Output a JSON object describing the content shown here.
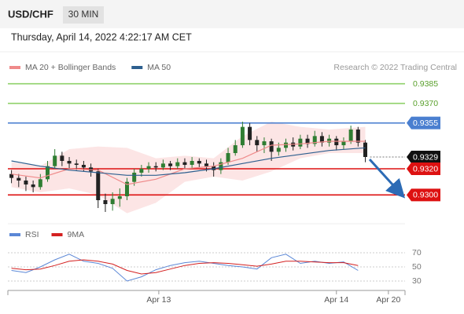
{
  "header": {
    "symbol": "USD/CHF",
    "timeframe": "30 MIN",
    "datetime": "Thursday, April 14, 2022 4:22:17 AM CET"
  },
  "chart_data": [
    {
      "type": "candlestick",
      "credit": "Research © 2022 Trading Central",
      "up_color": "#2f7d32",
      "down_color": "#222222",
      "xlim": [
        -0.5,
        54.5
      ],
      "ylim": [
        0.9278,
        0.9392
      ],
      "open": [
        0.9316,
        0.9313,
        0.9311,
        0.9308,
        0.9306,
        0.9312,
        0.9322,
        0.933,
        0.9326,
        0.9324,
        0.9323,
        0.9321,
        0.9318,
        0.9296,
        0.9293,
        0.9297,
        0.9299,
        0.931,
        0.9317,
        0.932,
        0.9322,
        0.9321,
        0.9324,
        0.9322,
        0.9325,
        0.9323,
        0.9326,
        0.9324,
        0.9322,
        0.9319,
        0.9325,
        0.9332,
        0.9338,
        0.9352,
        0.9342,
        0.9338,
        0.9341,
        0.9333,
        0.9336,
        0.934,
        0.9337,
        0.9343,
        0.9339,
        0.9345,
        0.934,
        0.9343,
        0.9338,
        0.9341,
        0.935,
        0.934
      ],
      "high": [
        0.9319,
        0.9316,
        0.9314,
        0.9311,
        0.9316,
        0.9326,
        0.9335,
        0.9333,
        0.9329,
        0.9327,
        0.9326,
        0.9324,
        0.932,
        0.9301,
        0.9302,
        0.9305,
        0.9313,
        0.932,
        0.9323,
        0.9325,
        0.9325,
        0.9327,
        0.9326,
        0.9328,
        0.9328,
        0.9329,
        0.9328,
        0.9327,
        0.9325,
        0.9328,
        0.9336,
        0.9342,
        0.9356,
        0.9355,
        0.9345,
        0.9344,
        0.9343,
        0.934,
        0.9343,
        0.9344,
        0.9346,
        0.9346,
        0.9349,
        0.9348,
        0.9346,
        0.9345,
        0.9344,
        0.9353,
        0.9352,
        0.9342
      ],
      "low": [
        0.9309,
        0.9306,
        0.9303,
        0.9302,
        0.9304,
        0.931,
        0.932,
        0.9322,
        0.932,
        0.9319,
        0.9318,
        0.9314,
        0.929,
        0.9287,
        0.9288,
        0.9291,
        0.9296,
        0.9307,
        0.9314,
        0.9317,
        0.9318,
        0.9319,
        0.9319,
        0.932,
        0.932,
        0.932,
        0.9321,
        0.9318,
        0.9314,
        0.9316,
        0.9323,
        0.933,
        0.9336,
        0.9338,
        0.9333,
        0.9332,
        0.9326,
        0.933,
        0.9333,
        0.9334,
        0.9335,
        0.9336,
        0.9337,
        0.9337,
        0.9337,
        0.9334,
        0.9335,
        0.9339,
        0.9337,
        0.9325
      ],
      "close": [
        0.9313,
        0.9311,
        0.9308,
        0.9306,
        0.9312,
        0.9322,
        0.933,
        0.9326,
        0.9324,
        0.9323,
        0.9321,
        0.9318,
        0.9296,
        0.9293,
        0.9297,
        0.9299,
        0.931,
        0.9317,
        0.932,
        0.9322,
        0.9321,
        0.9324,
        0.9322,
        0.9325,
        0.9323,
        0.9326,
        0.9324,
        0.9322,
        0.9319,
        0.9325,
        0.9332,
        0.9338,
        0.9352,
        0.9342,
        0.9338,
        0.9341,
        0.9333,
        0.9336,
        0.934,
        0.9337,
        0.9343,
        0.9339,
        0.9345,
        0.934,
        0.9343,
        0.9338,
        0.9341,
        0.935,
        0.934,
        0.9329
      ],
      "overlays": [
        {
          "name": "MA 20 + Bollinger Bands",
          "color": "#ef8a8a",
          "band_color": "#fbdede",
          "x": [
            0,
            4,
            8,
            12,
            16,
            20,
            24,
            28,
            32,
            36,
            40,
            44,
            49
          ],
          "values": [
            0.9316,
            0.9313,
            0.932,
            0.9319,
            0.9308,
            0.9312,
            0.932,
            0.9322,
            0.9328,
            0.9338,
            0.9339,
            0.9341,
            0.9341
          ],
          "upper": [
            0.9325,
            0.9322,
            0.9335,
            0.9337,
            0.9336,
            0.9328,
            0.933,
            0.9328,
            0.9345,
            0.9356,
            0.9352,
            0.935,
            0.9352
          ],
          "lower": [
            0.9306,
            0.9302,
            0.9305,
            0.93,
            0.9286,
            0.9294,
            0.931,
            0.9314,
            0.9311,
            0.9318,
            0.9328,
            0.9332,
            0.9332
          ]
        },
        {
          "name": "MA 50",
          "color": "#2d5f8f",
          "x": [
            0,
            4,
            8,
            12,
            16,
            20,
            24,
            28,
            32,
            36,
            40,
            44,
            49
          ],
          "values": [
            0.9326,
            0.9322,
            0.9319,
            0.9317,
            0.9315,
            0.9315,
            0.9317,
            0.932,
            0.9324,
            0.9328,
            0.9331,
            0.9334,
            0.9336
          ]
        }
      ],
      "levels": [
        {
          "value": 0.9385,
          "color": "#8fd16a",
          "label_box": false,
          "text_color": "#5aa02c"
        },
        {
          "value": 0.937,
          "label": "0.9370",
          "color": "#8fd16a",
          "label_box": false,
          "text_color": "#5aa02c"
        },
        {
          "value": 0.9355,
          "color": "#4a7fd0",
          "label_box": true,
          "text_color": "#ffffff"
        },
        {
          "value": 0.9329,
          "color": "#777777",
          "label_box": true,
          "text_color": "#ffffff",
          "box_color": "#111111",
          "dotted": true
        },
        {
          "value": 0.932,
          "label": "0.9320",
          "color": "#dd1111",
          "label_box": true,
          "text_color": "#ffffff"
        },
        {
          "value": 0.93,
          "label": "0.9300",
          "color": "#dd1111",
          "label_box": true,
          "text_color": "#ffffff"
        }
      ]
    },
    {
      "type": "line",
      "xlim": [
        -0.5,
        54.5
      ],
      "ylim": [
        20,
        80
      ],
      "yticks": [
        30,
        50,
        70
      ],
      "xticks": [
        {
          "value": 20.4,
          "label": "Apr 13"
        },
        {
          "value": 45,
          "label": "Apr 14"
        },
        {
          "value": 52.2,
          "label": "Apr 20"
        }
      ],
      "x": [
        0,
        2,
        4,
        6,
        8,
        10,
        12,
        14,
        16,
        18,
        20,
        22,
        24,
        26,
        28,
        30,
        32,
        34,
        36,
        38,
        40,
        42,
        44,
        46,
        48
      ],
      "series": [
        {
          "name": "RSI",
          "color": "#5b87d6",
          "values": [
            45,
            42,
            50,
            60,
            68,
            58,
            55,
            48,
            30,
            36,
            46,
            52,
            56,
            58,
            55,
            52,
            50,
            47,
            63,
            68,
            55,
            58,
            55,
            57,
            45
          ]
        },
        {
          "name": "9MA",
          "color": "#d42020",
          "values": [
            48,
            46,
            47,
            52,
            58,
            60,
            58,
            54,
            45,
            40,
            42,
            47,
            52,
            55,
            56,
            55,
            53,
            51,
            54,
            58,
            58,
            57,
            56,
            56,
            52
          ]
        }
      ]
    }
  ]
}
